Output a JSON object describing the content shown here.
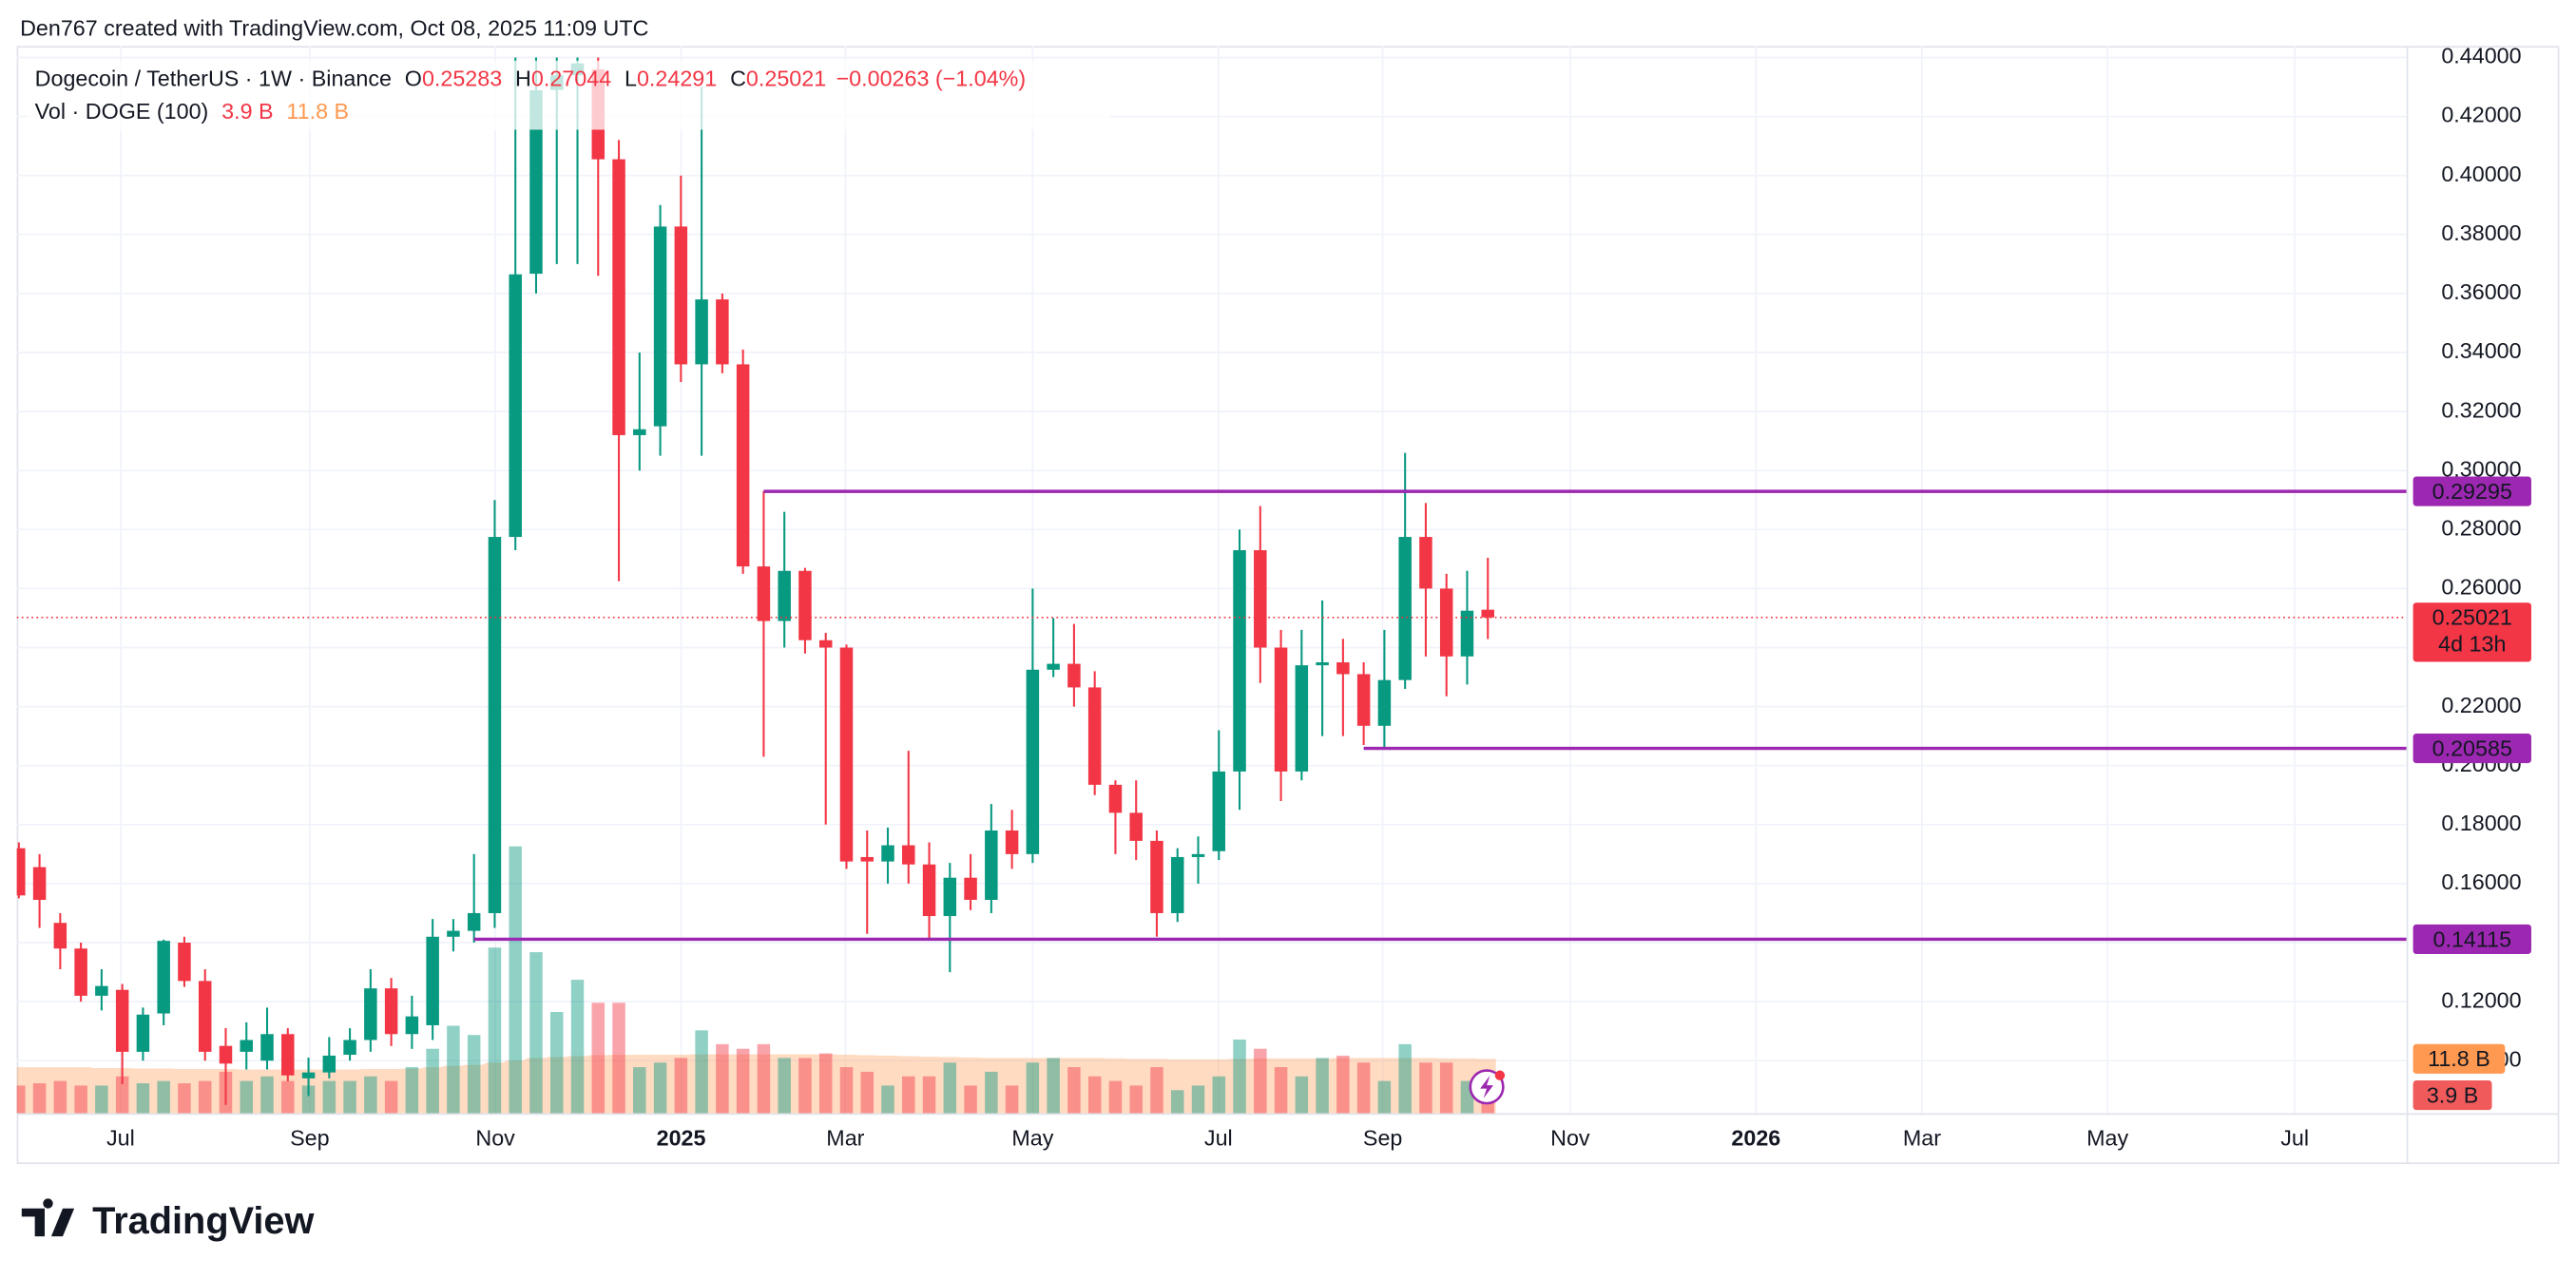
{
  "header": {
    "credit": "Den767 created with TradingView.com, Oct 08, 2025 11:09 UTC"
  },
  "footer": {
    "brand": "TradingView"
  },
  "chart_data": {
    "type": "candlestick",
    "title": "Dogecoin / TetherUS · 1W · Binance",
    "ohlc_labels": [
      "O",
      "H",
      "L",
      "C"
    ],
    "change_label": "−0.00263 (−1.04%)",
    "countdown": "4d 13h",
    "up_color": "#089981",
    "down_color": "#f23645",
    "level_color": "#9c27b0",
    "grid": true,
    "ylim": [
      0.0822,
      0.4439
    ],
    "yticks": [
      {
        "value": 0.1,
        "label": "0.10000"
      },
      {
        "value": 0.12,
        "label": "0.12000"
      },
      {
        "value": 0.14,
        "label": "0.14000"
      },
      {
        "value": 0.16,
        "label": "0.16000"
      },
      {
        "value": 0.18,
        "label": "0.18000"
      },
      {
        "value": 0.2,
        "label": "0.20000"
      },
      {
        "value": 0.22,
        "label": "0.22000"
      },
      {
        "value": 0.24,
        "label": "0.24000"
      },
      {
        "value": 0.26,
        "label": "0.26000"
      },
      {
        "value": 0.28,
        "label": "0.28000"
      },
      {
        "value": 0.3,
        "label": "0.30000"
      },
      {
        "value": 0.32,
        "label": "0.32000"
      },
      {
        "value": 0.34,
        "label": "0.34000"
      },
      {
        "value": 0.36,
        "label": "0.36000"
      },
      {
        "value": 0.38,
        "label": "0.38000"
      },
      {
        "value": 0.4,
        "label": "0.40000"
      },
      {
        "value": 0.42,
        "label": "0.42000"
      },
      {
        "value": 0.44,
        "label": "0.44000"
      }
    ],
    "xlim": [
      -0.1,
      115.4
    ],
    "xticks": [
      {
        "value": 4.92,
        "label": "Jul"
      },
      {
        "value": 14.06,
        "label": "Sep"
      },
      {
        "value": 23.03,
        "label": "Nov"
      },
      {
        "value": 32.01,
        "label": "2025"
      },
      {
        "value": 39.95,
        "label": "Mar"
      },
      {
        "value": 49.0,
        "label": "May"
      },
      {
        "value": 57.98,
        "label": "Jul"
      },
      {
        "value": 65.92,
        "label": "Sep"
      },
      {
        "value": 74.98,
        "label": "Nov"
      },
      {
        "value": 83.96,
        "label": "2026"
      },
      {
        "value": 91.98,
        "label": "Mar"
      },
      {
        "value": 100.95,
        "label": "May"
      },
      {
        "value": 110.0,
        "label": "Jul"
      }
    ],
    "candles": [
      {
        "o": 0.172,
        "h": 0.174,
        "l": 0.155,
        "c": 0.156
      },
      {
        "o": 0.1656,
        "h": 0.17,
        "l": 0.145,
        "c": 0.1545
      },
      {
        "o": 0.1467,
        "h": 0.15,
        "l": 0.131,
        "c": 0.138
      },
      {
        "o": 0.138,
        "h": 0.14,
        "l": 0.12,
        "c": 0.122
      },
      {
        "o": 0.122,
        "h": 0.131,
        "l": 0.117,
        "c": 0.1253
      },
      {
        "o": 0.124,
        "h": 0.126,
        "l": 0.092,
        "c": 0.103
      },
      {
        "o": 0.103,
        "h": 0.118,
        "l": 0.1,
        "c": 0.1156
      },
      {
        "o": 0.116,
        "h": 0.141,
        "l": 0.112,
        "c": 0.1406
      },
      {
        "o": 0.14,
        "h": 0.142,
        "l": 0.125,
        "c": 0.127
      },
      {
        "o": 0.127,
        "h": 0.131,
        "l": 0.1,
        "c": 0.103
      },
      {
        "o": 0.105,
        "h": 0.111,
        "l": 0.085,
        "c": 0.099
      },
      {
        "o": 0.103,
        "h": 0.113,
        "l": 0.097,
        "c": 0.107
      },
      {
        "o": 0.1,
        "h": 0.118,
        "l": 0.097,
        "c": 0.109
      },
      {
        "o": 0.109,
        "h": 0.111,
        "l": 0.093,
        "c": 0.095
      },
      {
        "o": 0.094,
        "h": 0.101,
        "l": 0.088,
        "c": 0.096
      },
      {
        "o": 0.096,
        "h": 0.108,
        "l": 0.094,
        "c": 0.1017
      },
      {
        "o": 0.102,
        "h": 0.111,
        "l": 0.1,
        "c": 0.107
      },
      {
        "o": 0.107,
        "h": 0.131,
        "l": 0.103,
        "c": 0.1245
      },
      {
        "o": 0.1245,
        "h": 0.128,
        "l": 0.105,
        "c": 0.109
      },
      {
        "o": 0.109,
        "h": 0.122,
        "l": 0.104,
        "c": 0.115
      },
      {
        "o": 0.112,
        "h": 0.148,
        "l": 0.107,
        "c": 0.142
      },
      {
        "o": 0.142,
        "h": 0.148,
        "l": 0.137,
        "c": 0.144
      },
      {
        "o": 0.144,
        "h": 0.17,
        "l": 0.14,
        "c": 0.15
      },
      {
        "o": 0.15,
        "h": 0.29,
        "l": 0.145,
        "c": 0.2775
      },
      {
        "o": 0.2775,
        "h": 0.44,
        "l": 0.273,
        "c": 0.3665
      },
      {
        "o": 0.3667,
        "h": 0.44,
        "l": 0.36,
        "c": 0.4289
      },
      {
        "o": 0.429,
        "h": 0.44,
        "l": 0.37,
        "c": 0.434
      },
      {
        "o": 0.434,
        "h": 0.44,
        "l": 0.37,
        "c": 0.438
      },
      {
        "o": 0.436,
        "h": 0.44,
        "l": 0.366,
        "c": 0.4055
      },
      {
        "o": 0.4055,
        "h": 0.412,
        "l": 0.2625,
        "c": 0.312
      },
      {
        "o": 0.312,
        "h": 0.34,
        "l": 0.3,
        "c": 0.314
      },
      {
        "o": 0.315,
        "h": 0.39,
        "l": 0.305,
        "c": 0.3827
      },
      {
        "o": 0.3827,
        "h": 0.4,
        "l": 0.33,
        "c": 0.336
      },
      {
        "o": 0.336,
        "h": 0.43,
        "l": 0.305,
        "c": 0.358
      },
      {
        "o": 0.358,
        "h": 0.36,
        "l": 0.333,
        "c": 0.336
      },
      {
        "o": 0.336,
        "h": 0.341,
        "l": 0.265,
        "c": 0.2675
      },
      {
        "o": 0.2675,
        "h": 0.293,
        "l": 0.203,
        "c": 0.249
      },
      {
        "o": 0.249,
        "h": 0.286,
        "l": 0.24,
        "c": 0.266
      },
      {
        "o": 0.266,
        "h": 0.267,
        "l": 0.238,
        "c": 0.2425
      },
      {
        "o": 0.2425,
        "h": 0.245,
        "l": 0.18,
        "c": 0.24
      },
      {
        "o": 0.24,
        "h": 0.241,
        "l": 0.165,
        "c": 0.1675
      },
      {
        "o": 0.169,
        "h": 0.178,
        "l": 0.143,
        "c": 0.1675
      },
      {
        "o": 0.1675,
        "h": 0.179,
        "l": 0.16,
        "c": 0.173
      },
      {
        "o": 0.173,
        "h": 0.205,
        "l": 0.16,
        "c": 0.1665
      },
      {
        "o": 0.1665,
        "h": 0.174,
        "l": 0.141,
        "c": 0.149
      },
      {
        "o": 0.149,
        "h": 0.167,
        "l": 0.13,
        "c": 0.162
      },
      {
        "o": 0.162,
        "h": 0.17,
        "l": 0.151,
        "c": 0.1545
      },
      {
        "o": 0.1545,
        "h": 0.187,
        "l": 0.15,
        "c": 0.178
      },
      {
        "o": 0.178,
        "h": 0.185,
        "l": 0.165,
        "c": 0.17
      },
      {
        "o": 0.17,
        "h": 0.26,
        "l": 0.167,
        "c": 0.2325
      },
      {
        "o": 0.2325,
        "h": 0.25,
        "l": 0.23,
        "c": 0.2345
      },
      {
        "o": 0.2345,
        "h": 0.248,
        "l": 0.22,
        "c": 0.2265
      },
      {
        "o": 0.2265,
        "h": 0.232,
        "l": 0.19,
        "c": 0.1935
      },
      {
        "o": 0.1935,
        "h": 0.195,
        "l": 0.17,
        "c": 0.184
      },
      {
        "o": 0.184,
        "h": 0.195,
        "l": 0.168,
        "c": 0.1745
      },
      {
        "o": 0.1745,
        "h": 0.178,
        "l": 0.142,
        "c": 0.15
      },
      {
        "o": 0.15,
        "h": 0.172,
        "l": 0.147,
        "c": 0.169
      },
      {
        "o": 0.169,
        "h": 0.176,
        "l": 0.16,
        "c": 0.17
      },
      {
        "o": 0.171,
        "h": 0.212,
        "l": 0.168,
        "c": 0.198
      },
      {
        "o": 0.198,
        "h": 0.28,
        "l": 0.185,
        "c": 0.273
      },
      {
        "o": 0.273,
        "h": 0.288,
        "l": 0.228,
        "c": 0.24
      },
      {
        "o": 0.24,
        "h": 0.246,
        "l": 0.188,
        "c": 0.198
      },
      {
        "o": 0.198,
        "h": 0.246,
        "l": 0.195,
        "c": 0.234
      },
      {
        "o": 0.234,
        "h": 0.256,
        "l": 0.21,
        "c": 0.235
      },
      {
        "o": 0.235,
        "h": 0.243,
        "l": 0.21,
        "c": 0.231
      },
      {
        "o": 0.231,
        "h": 0.235,
        "l": 0.207,
        "c": 0.2135
      },
      {
        "o": 0.2135,
        "h": 0.246,
        "l": 0.206,
        "c": 0.229
      },
      {
        "o": 0.229,
        "h": 0.306,
        "l": 0.226,
        "c": 0.2775
      },
      {
        "o": 0.2775,
        "h": 0.289,
        "l": 0.237,
        "c": 0.26
      },
      {
        "o": 0.26,
        "h": 0.265,
        "l": 0.2235,
        "c": 0.237
      },
      {
        "o": 0.237,
        "h": 0.266,
        "l": 0.2275,
        "c": 0.2525
      },
      {
        "o": 0.25283,
        "h": 0.27044,
        "l": 0.24291,
        "c": 0.25021
      }
    ],
    "volume": {
      "name": "Vol · DOGE (100)",
      "last_label": "3.9 B",
      "ma_label": "11.8 B",
      "ma_color": "#ff9850",
      "vlim": [
        0,
        232
      ],
      "values": [
        6,
        6.5,
        7,
        6,
        6,
        8,
        6.5,
        7,
        6.5,
        7,
        9,
        7,
        8,
        7,
        6,
        7,
        7,
        8,
        7,
        10,
        14,
        19,
        17,
        36,
        58,
        35,
        22,
        29,
        24,
        24,
        10,
        11,
        12,
        18,
        15,
        14,
        15,
        12,
        12,
        13,
        10,
        9,
        6,
        8,
        8,
        11,
        6,
        9,
        6,
        11,
        12,
        10,
        8,
        7,
        6,
        10,
        5,
        6,
        8,
        16,
        14,
        10,
        8,
        12,
        12.5,
        11,
        7,
        15,
        11,
        11,
        7,
        3.9
      ],
      "ma": [
        10,
        10,
        10,
        10,
        9.8,
        9.8,
        9.7,
        9.7,
        9.6,
        9.6,
        9.6,
        9.5,
        9.5,
        9.5,
        9.5,
        9.5,
        9.5,
        9.6,
        9.6,
        9.7,
        10,
        10.3,
        10.5,
        11,
        11.5,
        12,
        12.2,
        12.4,
        12.6,
        12.7,
        12.7,
        12.7,
        12.7,
        12.8,
        12.8,
        12.8,
        12.8,
        12.8,
        12.8,
        12.8,
        12.7,
        12.6,
        12.5,
        12.4,
        12.3,
        12.2,
        12.1,
        12,
        12,
        12,
        12,
        12,
        12,
        11.9,
        11.8,
        11.8,
        11.7,
        11.7,
        11.7,
        11.8,
        11.9,
        11.9,
        11.9,
        11.9,
        12,
        12,
        12,
        12,
        12,
        11.9,
        11.9,
        11.8
      ]
    },
    "levels": [
      {
        "value": 0.29295,
        "start": 36
      },
      {
        "value": 0.20585,
        "start": 65
      },
      {
        "value": 0.14115,
        "start": 22
      }
    ]
  }
}
